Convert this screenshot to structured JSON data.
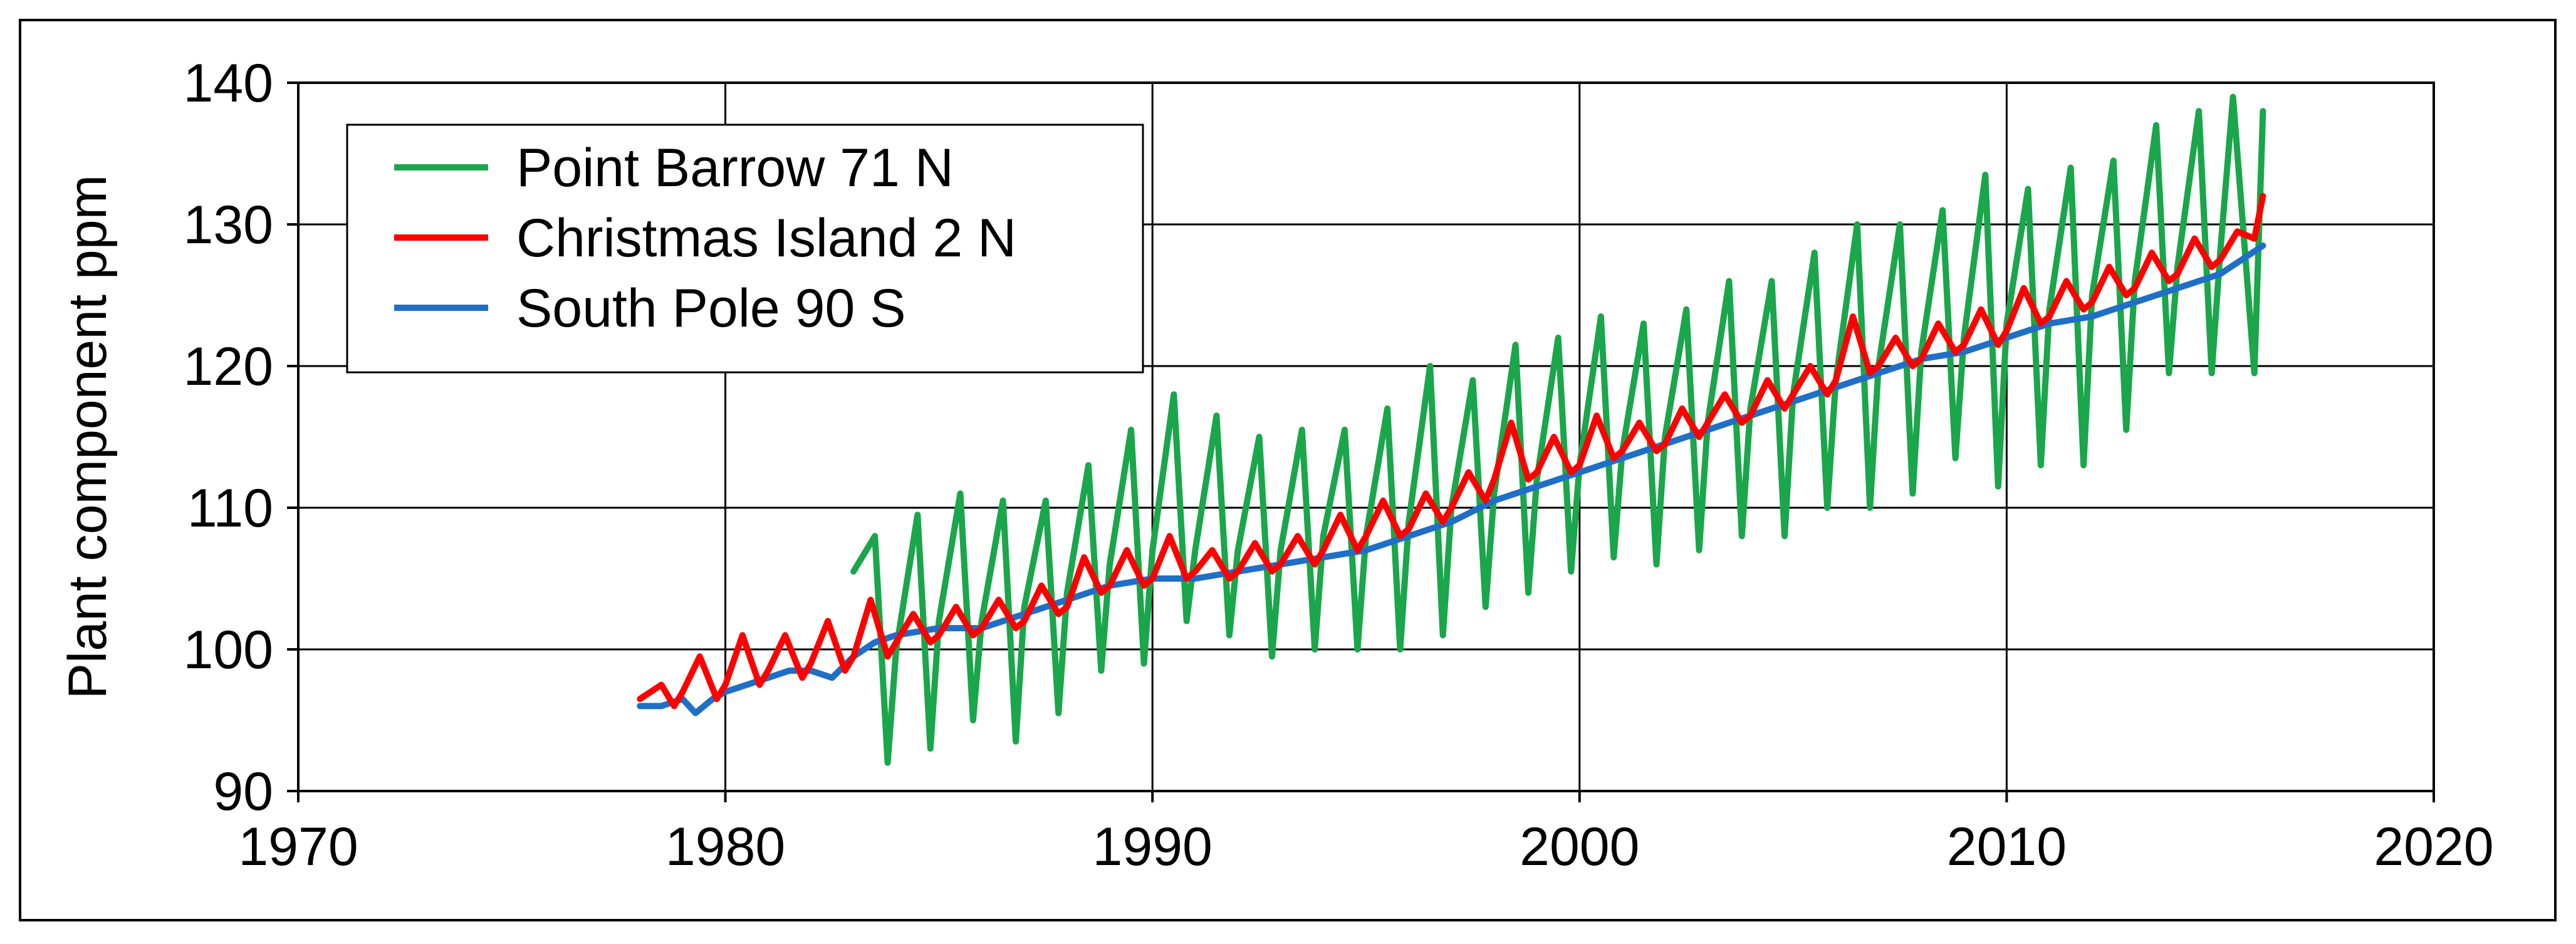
{
  "chart_data": {
    "type": "line",
    "title": "",
    "xlabel": "",
    "ylabel": "Plant component ppm",
    "xlim": [
      1970,
      2020
    ],
    "ylim": [
      90,
      140
    ],
    "xticks": [
      1970,
      1980,
      1990,
      2000,
      2010,
      2020
    ],
    "yticks": [
      90,
      100,
      110,
      120,
      130,
      140
    ],
    "grid": true,
    "legend_position": "top-left",
    "series": [
      {
        "name": "Point Barrow 71 N",
        "color": "#1aa64a",
        "start": 1983.0,
        "end": 2016.0,
        "seasonal": true,
        "data": [
          [
            1983.0,
            105.5
          ],
          [
            1983.5,
            108.0
          ],
          [
            1983.8,
            92.0
          ],
          [
            1984.0,
            100.0
          ],
          [
            1984.5,
            109.5
          ],
          [
            1984.8,
            93.0
          ],
          [
            1985.0,
            102.0
          ],
          [
            1985.5,
            111.0
          ],
          [
            1985.8,
            95.0
          ],
          [
            1986.0,
            102.0
          ],
          [
            1986.5,
            110.5
          ],
          [
            1986.8,
            93.5
          ],
          [
            1987.0,
            103.0
          ],
          [
            1987.5,
            110.5
          ],
          [
            1987.8,
            95.5
          ],
          [
            1988.0,
            104.0
          ],
          [
            1988.5,
            113.0
          ],
          [
            1988.8,
            98.5
          ],
          [
            1989.0,
            106.0
          ],
          [
            1989.5,
            115.5
          ],
          [
            1989.8,
            99.0
          ],
          [
            1990.0,
            107.0
          ],
          [
            1990.5,
            118.0
          ],
          [
            1990.8,
            102.0
          ],
          [
            1991.0,
            107.0
          ],
          [
            1991.5,
            116.5
          ],
          [
            1991.8,
            101.0
          ],
          [
            1992.0,
            107.0
          ],
          [
            1992.5,
            115.0
          ],
          [
            1992.8,
            99.5
          ],
          [
            1993.0,
            107.0
          ],
          [
            1993.5,
            115.5
          ],
          [
            1993.8,
            100.0
          ],
          [
            1994.0,
            108.0
          ],
          [
            1994.5,
            115.5
          ],
          [
            1994.8,
            100.0
          ],
          [
            1995.0,
            108.0
          ],
          [
            1995.5,
            117.0
          ],
          [
            1995.8,
            100.0
          ],
          [
            1996.0,
            109.0
          ],
          [
            1996.5,
            120.0
          ],
          [
            1996.8,
            101.0
          ],
          [
            1997.0,
            110.0
          ],
          [
            1997.5,
            119.0
          ],
          [
            1997.8,
            103.0
          ],
          [
            1998.0,
            111.0
          ],
          [
            1998.5,
            121.5
          ],
          [
            1998.8,
            104.0
          ],
          [
            1999.0,
            112.0
          ],
          [
            1999.5,
            122.0
          ],
          [
            1999.8,
            105.5
          ],
          [
            2000.0,
            113.0
          ],
          [
            2000.5,
            123.5
          ],
          [
            2000.8,
            106.5
          ],
          [
            2001.0,
            114.0
          ],
          [
            2001.5,
            123.0
          ],
          [
            2001.8,
            106.0
          ],
          [
            2002.0,
            115.0
          ],
          [
            2002.5,
            124.0
          ],
          [
            2002.8,
            107.0
          ],
          [
            2003.0,
            116.0
          ],
          [
            2003.5,
            126.0
          ],
          [
            2003.8,
            108.0
          ],
          [
            2004.0,
            117.0
          ],
          [
            2004.5,
            126.0
          ],
          [
            2004.8,
            108.0
          ],
          [
            2005.0,
            118.0
          ],
          [
            2005.5,
            128.0
          ],
          [
            2005.8,
            110.0
          ],
          [
            2006.0,
            119.0
          ],
          [
            2006.5,
            130.0
          ],
          [
            2006.8,
            110.0
          ],
          [
            2007.0,
            120.0
          ],
          [
            2007.5,
            130.0
          ],
          [
            2007.8,
            111.0
          ],
          [
            2008.0,
            121.0
          ],
          [
            2008.5,
            131.0
          ],
          [
            2008.8,
            113.5
          ],
          [
            2009.0,
            122.0
          ],
          [
            2009.5,
            133.5
          ],
          [
            2009.8,
            111.5
          ],
          [
            2010.0,
            123.0
          ],
          [
            2010.5,
            132.5
          ],
          [
            2010.8,
            113.0
          ],
          [
            2011.0,
            124.0
          ],
          [
            2011.5,
            134.0
          ],
          [
            2011.8,
            113.0
          ],
          [
            2012.0,
            125.0
          ],
          [
            2012.5,
            134.5
          ],
          [
            2012.8,
            115.5
          ],
          [
            2013.0,
            126.0
          ],
          [
            2013.5,
            137.0
          ],
          [
            2013.8,
            119.5
          ],
          [
            2014.0,
            127.0
          ],
          [
            2014.5,
            138.0
          ],
          [
            2014.8,
            119.5
          ],
          [
            2015.0,
            128.0
          ],
          [
            2015.3,
            139.0
          ],
          [
            2015.8,
            119.5
          ],
          [
            2016.0,
            138.0
          ]
        ]
      },
      {
        "name": "Christmas Island 2 N",
        "color": "#ff0000",
        "start": 1978.0,
        "end": 2016.0,
        "seasonal": true,
        "data": [
          [
            1978.0,
            96.5
          ],
          [
            1978.5,
            97.5
          ],
          [
            1978.8,
            96.0
          ],
          [
            1979.0,
            97.0
          ],
          [
            1979.4,
            99.5
          ],
          [
            1979.8,
            96.5
          ],
          [
            1980.0,
            97.5
          ],
          [
            1980.4,
            101.0
          ],
          [
            1980.8,
            97.5
          ],
          [
            1981.0,
            98.5
          ],
          [
            1981.4,
            101.0
          ],
          [
            1981.8,
            98.0
          ],
          [
            1982.0,
            99.0
          ],
          [
            1982.4,
            102.0
          ],
          [
            1982.8,
            98.5
          ],
          [
            1983.0,
            99.5
          ],
          [
            1983.4,
            103.5
          ],
          [
            1983.8,
            99.5
          ],
          [
            1984.0,
            100.5
          ],
          [
            1984.4,
            102.5
          ],
          [
            1984.8,
            100.5
          ],
          [
            1985.0,
            101.0
          ],
          [
            1985.4,
            103.0
          ],
          [
            1985.8,
            101.0
          ],
          [
            1986.0,
            101.5
          ],
          [
            1986.4,
            103.5
          ],
          [
            1986.8,
            101.5
          ],
          [
            1987.0,
            102.0
          ],
          [
            1987.4,
            104.5
          ],
          [
            1987.8,
            102.5
          ],
          [
            1988.0,
            103.0
          ],
          [
            1988.4,
            106.5
          ],
          [
            1988.8,
            104.0
          ],
          [
            1989.0,
            104.5
          ],
          [
            1989.4,
            107.0
          ],
          [
            1989.8,
            104.5
          ],
          [
            1990.0,
            105.0
          ],
          [
            1990.4,
            108.0
          ],
          [
            1990.8,
            105.0
          ],
          [
            1991.0,
            105.5
          ],
          [
            1991.4,
            107.0
          ],
          [
            1991.8,
            105.0
          ],
          [
            1992.0,
            105.5
          ],
          [
            1992.4,
            107.5
          ],
          [
            1992.8,
            105.5
          ],
          [
            1993.0,
            106.0
          ],
          [
            1993.4,
            108.0
          ],
          [
            1993.8,
            106.0
          ],
          [
            1994.0,
            107.0
          ],
          [
            1994.4,
            109.5
          ],
          [
            1994.8,
            107.0
          ],
          [
            1995.0,
            108.0
          ],
          [
            1995.4,
            110.5
          ],
          [
            1995.8,
            108.0
          ],
          [
            1996.0,
            108.5
          ],
          [
            1996.4,
            111.0
          ],
          [
            1996.8,
            109.0
          ],
          [
            1997.0,
            110.0
          ],
          [
            1997.4,
            112.5
          ],
          [
            1997.8,
            110.5
          ],
          [
            1998.0,
            112.0
          ],
          [
            1998.4,
            116.0
          ],
          [
            1998.8,
            112.0
          ],
          [
            1999.0,
            112.5
          ],
          [
            1999.4,
            115.0
          ],
          [
            1999.8,
            112.5
          ],
          [
            2000.0,
            113.0
          ],
          [
            2000.4,
            116.5
          ],
          [
            2000.8,
            113.5
          ],
          [
            2001.0,
            114.0
          ],
          [
            2001.4,
            116.0
          ],
          [
            2001.8,
            114.0
          ],
          [
            2002.0,
            114.5
          ],
          [
            2002.4,
            117.0
          ],
          [
            2002.8,
            115.0
          ],
          [
            2003.0,
            116.0
          ],
          [
            2003.4,
            118.0
          ],
          [
            2003.8,
            116.0
          ],
          [
            2004.0,
            116.5
          ],
          [
            2004.4,
            119.0
          ],
          [
            2004.8,
            117.0
          ],
          [
            2005.0,
            118.0
          ],
          [
            2005.4,
            120.0
          ],
          [
            2005.8,
            118.0
          ],
          [
            2006.0,
            119.0
          ],
          [
            2006.4,
            123.5
          ],
          [
            2006.8,
            119.5
          ],
          [
            2007.0,
            120.0
          ],
          [
            2007.4,
            122.0
          ],
          [
            2007.8,
            120.0
          ],
          [
            2008.0,
            120.5
          ],
          [
            2008.4,
            123.0
          ],
          [
            2008.8,
            121.0
          ],
          [
            2009.0,
            121.5
          ],
          [
            2009.4,
            124.0
          ],
          [
            2009.8,
            121.5
          ],
          [
            2010.0,
            122.5
          ],
          [
            2010.4,
            125.5
          ],
          [
            2010.8,
            123.0
          ],
          [
            2011.0,
            123.5
          ],
          [
            2011.4,
            126.0
          ],
          [
            2011.8,
            124.0
          ],
          [
            2012.0,
            124.5
          ],
          [
            2012.4,
            127.0
          ],
          [
            2012.8,
            125.0
          ],
          [
            2013.0,
            125.5
          ],
          [
            2013.4,
            128.0
          ],
          [
            2013.8,
            126.0
          ],
          [
            2014.0,
            126.5
          ],
          [
            2014.4,
            129.0
          ],
          [
            2014.8,
            127.0
          ],
          [
            2015.0,
            127.5
          ],
          [
            2015.4,
            129.5
          ],
          [
            2015.8,
            129.0
          ],
          [
            2016.0,
            132.0
          ]
        ]
      },
      {
        "name": "South Pole 90 S",
        "color": "#1f6fc6",
        "start": 1978.0,
        "end": 2016.0,
        "seasonal": false,
        "data": [
          [
            1978.0,
            96.0
          ],
          [
            1978.5,
            96.0
          ],
          [
            1979.0,
            96.5
          ],
          [
            1979.3,
            95.5
          ],
          [
            1979.7,
            96.5
          ],
          [
            1980.0,
            97.0
          ],
          [
            1980.5,
            97.5
          ],
          [
            1981.0,
            98.0
          ],
          [
            1981.5,
            98.5
          ],
          [
            1982.0,
            98.5
          ],
          [
            1982.5,
            98.0
          ],
          [
            1983.0,
            99.5
          ],
          [
            1983.5,
            100.5
          ],
          [
            1984.0,
            101.0
          ],
          [
            1985.0,
            101.5
          ],
          [
            1986.0,
            101.5
          ],
          [
            1987.0,
            102.5
          ],
          [
            1988.0,
            103.5
          ],
          [
            1989.0,
            104.5
          ],
          [
            1990.0,
            105.0
          ],
          [
            1991.0,
            105.0
          ],
          [
            1992.0,
            105.5
          ],
          [
            1993.0,
            106.0
          ],
          [
            1994.0,
            106.5
          ],
          [
            1995.0,
            107.0
          ],
          [
            1996.0,
            108.0
          ],
          [
            1997.0,
            109.0
          ],
          [
            1998.0,
            110.5
          ],
          [
            1999.0,
            111.5
          ],
          [
            2000.0,
            112.5
          ],
          [
            2001.0,
            113.5
          ],
          [
            2002.0,
            114.5
          ],
          [
            2003.0,
            115.5
          ],
          [
            2004.0,
            116.5
          ],
          [
            2005.0,
            117.5
          ],
          [
            2006.0,
            118.5
          ],
          [
            2007.0,
            119.5
          ],
          [
            2008.0,
            120.5
          ],
          [
            2009.0,
            121.0
          ],
          [
            2010.0,
            122.0
          ],
          [
            2011.0,
            123.0
          ],
          [
            2012.0,
            123.5
          ],
          [
            2013.0,
            124.5
          ],
          [
            2014.0,
            125.5
          ],
          [
            2015.0,
            126.5
          ],
          [
            2016.0,
            128.5
          ]
        ]
      }
    ]
  }
}
